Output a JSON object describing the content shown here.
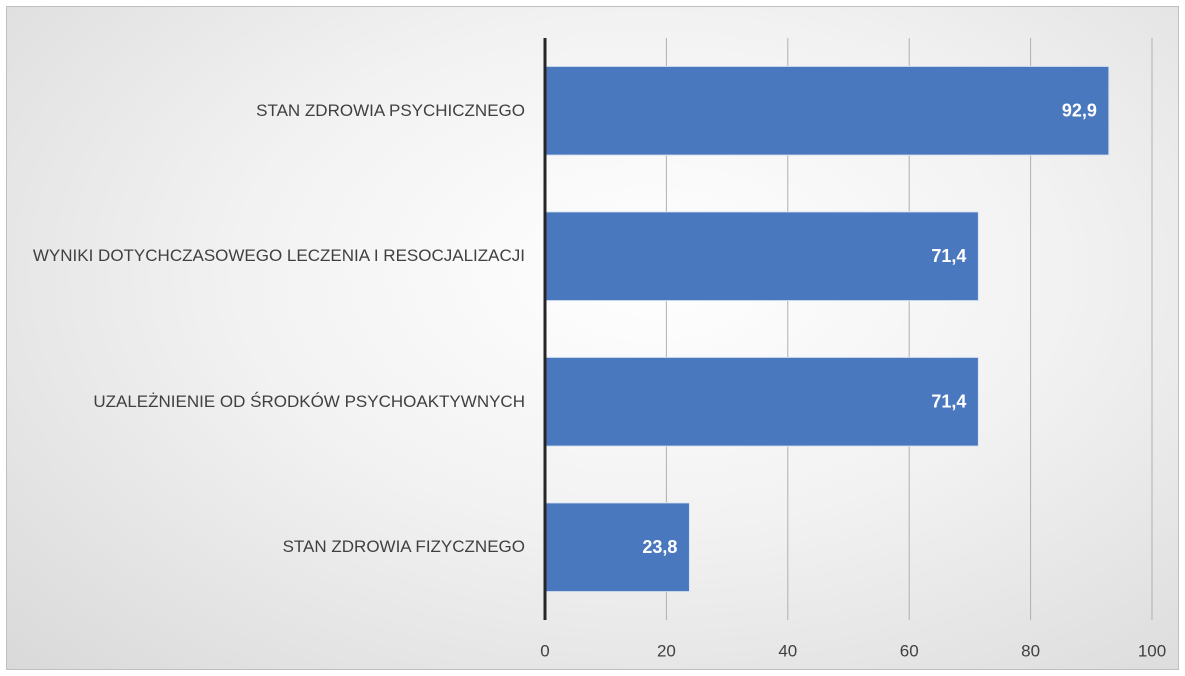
{
  "chart_data": {
    "type": "bar",
    "orientation": "horizontal",
    "categories": [
      "STAN ZDROWIA PSYCHICZNEGO",
      "WYNIKI DOTYCHCZASOWEGO LECZENIA I RESOCJALIZACJI",
      "UZALEŻNIENIE OD ŚRODKÓW PSYCHOAKTYWNYCH",
      "STAN ZDROWIA FIZYCZNEGO"
    ],
    "values": [
      92.9,
      71.4,
      71.4,
      23.8
    ],
    "value_labels": [
      "92,9",
      "71,4",
      "71,4",
      "23,8"
    ],
    "color": "#4a78be",
    "xlim": [
      0,
      100
    ],
    "xticks": [
      0,
      20,
      40,
      60,
      80,
      100
    ],
    "grid": true
  }
}
